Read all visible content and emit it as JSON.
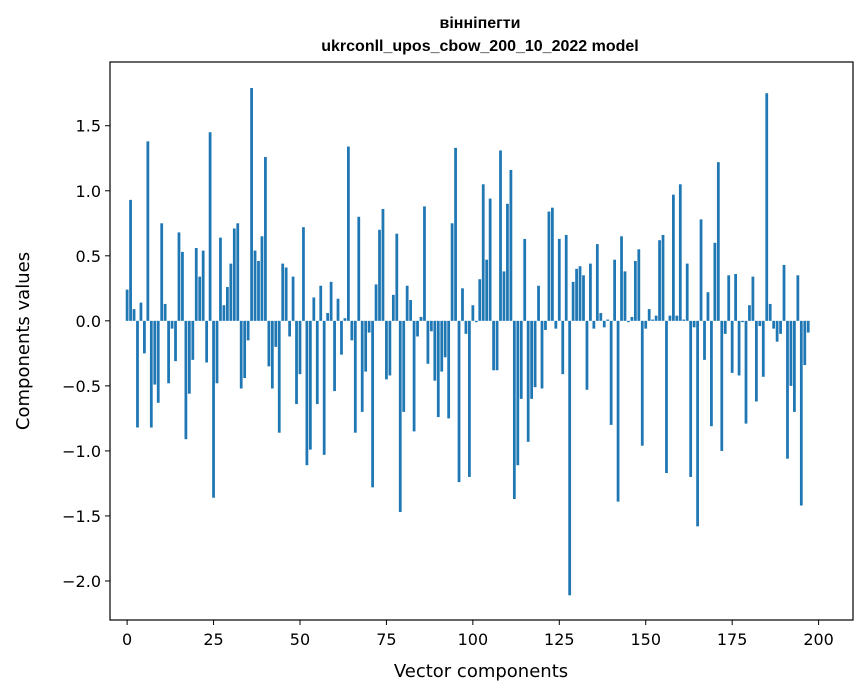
{
  "chart_data": {
    "type": "bar",
    "title": "вінніпегти",
    "subtitle": "ukrconll_upos_cbow_200_10_2022 model",
    "xlabel": "Vector components",
    "ylabel": "Components values",
    "xlim": [
      -4.95,
      209.95
    ],
    "ylim": [
      -2.3,
      1.99
    ],
    "xticks": [
      0,
      25,
      50,
      75,
      100,
      125,
      150,
      175,
      200
    ],
    "yticks": [
      -2.0,
      -1.5,
      -1.0,
      -0.5,
      0.0,
      0.5,
      1.0,
      1.5
    ],
    "ytick_labels": [
      "−2.0",
      "−1.5",
      "−1.0",
      "−0.5",
      "0.0",
      "0.5",
      "1.0",
      "1.5"
    ],
    "grid": false,
    "bar_color": "#1f77b4",
    "values": [
      0.24,
      0.93,
      0.09,
      -0.82,
      0.14,
      -0.25,
      1.38,
      -0.82,
      -0.49,
      -0.63,
      0.75,
      0.13,
      -0.48,
      -0.06,
      -0.31,
      0.68,
      0.53,
      -0.91,
      -0.56,
      -0.3,
      0.56,
      0.34,
      0.54,
      -0.32,
      1.45,
      -1.36,
      -0.48,
      0.64,
      0.12,
      0.26,
      0.44,
      0.71,
      0.75,
      -0.52,
      -0.44,
      -0.15,
      1.79,
      0.54,
      0.46,
      0.65,
      1.26,
      -0.35,
      -0.52,
      -0.2,
      -0.86,
      0.44,
      0.41,
      -0.12,
      0.34,
      -0.64,
      -0.41,
      0.72,
      -1.11,
      -0.99,
      0.18,
      -0.64,
      0.27,
      -1.03,
      0.06,
      0.3,
      -0.54,
      0.17,
      -0.26,
      0.02,
      1.34,
      -0.15,
      -0.86,
      0.8,
      -0.7,
      -0.39,
      -0.09,
      -1.28,
      0.28,
      0.7,
      0.86,
      -0.45,
      -0.42,
      0.2,
      0.67,
      -1.47,
      -0.7,
      0.27,
      0.16,
      -0.85,
      -0.12,
      0.03,
      0.88,
      -0.33,
      -0.08,
      -0.46,
      -0.74,
      -0.39,
      -0.28,
      -0.75,
      0.75,
      1.33,
      -1.24,
      0.25,
      -0.1,
      -1.2,
      0.12,
      -0.01,
      0.32,
      1.05,
      0.47,
      0.94,
      -0.38,
      -0.38,
      1.31,
      0.38,
      0.9,
      1.16,
      -1.37,
      -1.11,
      -0.6,
      0.63,
      -0.93,
      -0.6,
      -0.51,
      0.27,
      -0.52,
      -0.07,
      0.84,
      0.87,
      -0.06,
      0.63,
      -0.41,
      0.66,
      -2.11,
      0.3,
      0.4,
      0.42,
      0.35,
      -0.53,
      0.44,
      -0.06,
      0.59,
      0.06,
      -0.05,
      0.01,
      -0.8,
      0.47,
      -1.39,
      0.65,
      0.38,
      -0.01,
      0.03,
      0.46,
      0.55,
      -0.96,
      -0.06,
      0.09,
      0.01,
      0.04,
      0.62,
      0.66,
      -1.17,
      0.04,
      0.97,
      0.04,
      1.05,
      0.01,
      0.44,
      -1.2,
      -0.05,
      -1.58,
      0.78,
      -0.3,
      0.22,
      -0.81,
      0.6,
      1.22,
      -1.0,
      -0.1,
      0.35,
      -0.4,
      0.36,
      -0.42,
      -0.01,
      -0.79,
      0.12,
      0.34,
      -0.62,
      -0.04,
      -0.43,
      1.75,
      0.13,
      -0.06,
      -0.16,
      -0.1,
      0.43,
      -1.06,
      -0.5,
      -0.7,
      0.35,
      -1.42,
      -0.34,
      -0.09
    ]
  }
}
